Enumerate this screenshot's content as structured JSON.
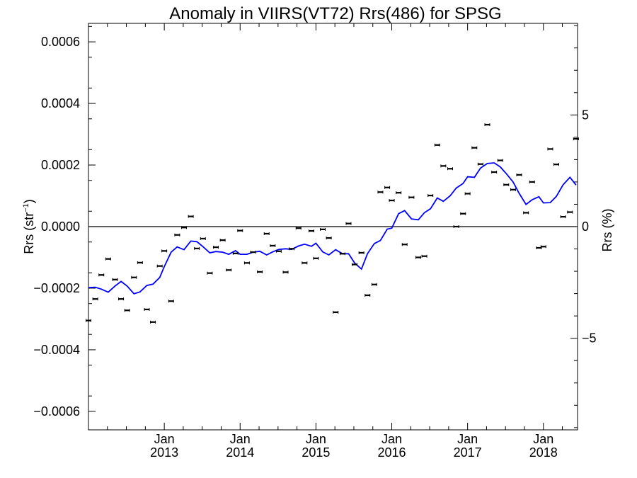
{
  "chart_data": {
    "type": "scatter",
    "title": "Anomaly in VIIRS(VT72) Rrs(486) for SPSG",
    "ylabel": "Rrs (str",
    "ylabel_sup": "−1",
    "ylabel_close": ")",
    "y2label": "Rrs (%)",
    "xlim": [
      2012.0,
      2018.45
    ],
    "ylim": [
      -0.00066,
      0.00066
    ],
    "y2lim": [
      -9.1,
      9.1
    ],
    "grid": false,
    "zero_line": true,
    "yticks": [
      {
        "value": 0.0006,
        "label": "0.0006"
      },
      {
        "value": 0.0004,
        "label": "0.0004"
      },
      {
        "value": 0.0002,
        "label": "0.0002"
      },
      {
        "value": 0.0,
        "label": "0.0000"
      },
      {
        "value": -0.0002,
        "label": "−0.0002"
      },
      {
        "value": -0.0004,
        "label": "−0.0004"
      },
      {
        "value": -0.0006,
        "label": "−0.0006"
      }
    ],
    "y2ticks": [
      {
        "value": 5,
        "label": "5"
      },
      {
        "value": 0,
        "label": "0"
      },
      {
        "value": -5,
        "label": "−5"
      }
    ],
    "xticks": [
      {
        "value": 2013.0,
        "line1": "Jan",
        "line2": "2013"
      },
      {
        "value": 2014.0,
        "line1": "Jan",
        "line2": "2014"
      },
      {
        "value": 2015.0,
        "line1": "Jan",
        "line2": "2015"
      },
      {
        "value": 2016.0,
        "line1": "Jan",
        "line2": "2016"
      },
      {
        "value": 2017.0,
        "line1": "Jan",
        "line2": "2017"
      },
      {
        "value": 2018.0,
        "line1": "Jan",
        "line2": "2018"
      }
    ],
    "points_color": "#000000",
    "line_color": "#0000ff",
    "points": [
      [
        2012.0,
        -0.000305
      ],
      [
        2012.09,
        -0.000235
      ],
      [
        2012.17,
        -0.000157
      ],
      [
        2012.26,
        -0.000105
      ],
      [
        2012.35,
        -0.000172
      ],
      [
        2012.43,
        -0.000235
      ],
      [
        2012.51,
        -0.000272
      ],
      [
        2012.6,
        -0.000165
      ],
      [
        2012.68,
        -0.000117
      ],
      [
        2012.77,
        -0.000269
      ],
      [
        2012.85,
        -0.00031
      ],
      [
        2012.94,
        -0.000128
      ],
      [
        2013.0,
        -7.9e-05
      ],
      [
        2013.09,
        -0.000242
      ],
      [
        2013.17,
        -2.7e-05
      ],
      [
        2013.26,
        -3e-06
      ],
      [
        2013.35,
        3.3e-05
      ],
      [
        2013.43,
        -7.1e-05
      ],
      [
        2013.51,
        -3.9e-05
      ],
      [
        2013.6,
        -0.000151
      ],
      [
        2013.68,
        -6.7e-05
      ],
      [
        2013.77,
        -4.4e-05
      ],
      [
        2013.85,
        -0.000141
      ],
      [
        2013.94,
        -8.7e-05
      ],
      [
        2014.0,
        -1.3e-05
      ],
      [
        2014.09,
        -0.000118
      ],
      [
        2014.17,
        -8.3e-05
      ],
      [
        2014.26,
        -0.000147
      ],
      [
        2014.35,
        -2.3e-05
      ],
      [
        2014.43,
        -6.2e-05
      ],
      [
        2014.51,
        -8e-05
      ],
      [
        2014.6,
        -0.000148
      ],
      [
        2014.68,
        -7.2e-05
      ],
      [
        2014.77,
        -5e-06
      ],
      [
        2014.85,
        -0.000118
      ],
      [
        2014.94,
        -1.4e-05
      ],
      [
        2015.0,
        -0.000103
      ],
      [
        2015.09,
        -9e-06
      ],
      [
        2015.17,
        -3.7e-05
      ],
      [
        2015.26,
        -0.000278
      ],
      [
        2015.35,
        -8.8e-05
      ],
      [
        2015.43,
        1e-05
      ],
      [
        2015.51,
        -0.000123
      ],
      [
        2015.6,
        -8.5e-05
      ],
      [
        2015.68,
        -0.000223
      ],
      [
        2015.77,
        -0.000188
      ],
      [
        2015.85,
        0.000112
      ],
      [
        2015.94,
        0.000127
      ],
      [
        2016.0,
        8.5e-05
      ],
      [
        2016.09,
        0.00011
      ],
      [
        2016.17,
        -5.8e-05
      ],
      [
        2016.26,
        9.5e-05
      ],
      [
        2016.35,
        -0.0001
      ],
      [
        2016.43,
        -9.6e-05
      ],
      [
        2016.51,
        0.000101
      ],
      [
        2016.6,
        0.000265
      ],
      [
        2016.68,
        0.000197
      ],
      [
        2016.77,
        0.000188
      ],
      [
        2016.85,
        0.0
      ],
      [
        2016.94,
        4.2e-05
      ],
      [
        2017.0,
        0.000107
      ],
      [
        2017.09,
        0.000256
      ],
      [
        2017.17,
        0.000203
      ],
      [
        2017.26,
        0.000331
      ],
      [
        2017.35,
        0.000177
      ],
      [
        2017.43,
        0.000215
      ],
      [
        2017.51,
        0.000136
      ],
      [
        2017.6,
        0.00012
      ],
      [
        2017.68,
        0.000168
      ],
      [
        2017.77,
        4.5e-05
      ],
      [
        2017.85,
        0.000145
      ],
      [
        2017.94,
        -6.9e-05
      ],
      [
        2018.0,
        -6.5e-05
      ],
      [
        2018.09,
        0.000252
      ],
      [
        2018.17,
        0.000202
      ],
      [
        2018.26,
        3.2e-05
      ],
      [
        2018.35,
        4.7e-05
      ],
      [
        2018.43,
        0.000285
      ]
    ],
    "line": [
      [
        2012.0,
        -0.000198
      ],
      [
        2012.09,
        -0.000197
      ],
      [
        2012.17,
        -0.000203
      ],
      [
        2012.26,
        -0.000213
      ],
      [
        2012.35,
        -0.000193
      ],
      [
        2012.43,
        -0.000178
      ],
      [
        2012.51,
        -0.000193
      ],
      [
        2012.6,
        -0.000218
      ],
      [
        2012.68,
        -0.000212
      ],
      [
        2012.77,
        -0.000191
      ],
      [
        2012.85,
        -0.000187
      ],
      [
        2012.94,
        -0.000165
      ],
      [
        2013.0,
        -0.00013
      ],
      [
        2013.09,
        -8.3e-05
      ],
      [
        2013.17,
        -6.6e-05
      ],
      [
        2013.26,
        -7.5e-05
      ],
      [
        2013.35,
        -4.7e-05
      ],
      [
        2013.43,
        -4.9e-05
      ],
      [
        2013.51,
        -6.5e-05
      ],
      [
        2013.6,
        -8.5e-05
      ],
      [
        2013.68,
        -8.1e-05
      ],
      [
        2013.77,
        -8.3e-05
      ],
      [
        2013.85,
        -9e-05
      ],
      [
        2013.94,
        -7.8e-05
      ],
      [
        2014.0,
        -9e-05
      ],
      [
        2014.09,
        -9e-05
      ],
      [
        2014.17,
        -8.3e-05
      ],
      [
        2014.26,
        -8e-05
      ],
      [
        2014.35,
        -9.2e-05
      ],
      [
        2014.43,
        -8.2e-05
      ],
      [
        2014.51,
        -7.4e-05
      ],
      [
        2014.6,
        -7.2e-05
      ],
      [
        2014.68,
        -7.4e-05
      ],
      [
        2014.77,
        -6.3e-05
      ],
      [
        2014.85,
        -5.7e-05
      ],
      [
        2014.94,
        -6.4e-05
      ],
      [
        2015.0,
        -5.4e-05
      ],
      [
        2015.09,
        -8.2e-05
      ],
      [
        2015.17,
        -9.2e-05
      ],
      [
        2015.26,
        -7.5e-05
      ],
      [
        2015.35,
        -8.8e-05
      ],
      [
        2015.43,
        -8.8e-05
      ],
      [
        2015.51,
        -0.000118
      ],
      [
        2015.6,
        -0.000138
      ],
      [
        2015.68,
        -8.8e-05
      ],
      [
        2015.77,
        -5.5e-05
      ],
      [
        2015.85,
        -4.5e-05
      ],
      [
        2015.94,
        -8e-06
      ],
      [
        2016.0,
        -5e-06
      ],
      [
        2016.09,
        4.2e-05
      ],
      [
        2016.17,
        5.2e-05
      ],
      [
        2016.26,
        2.5e-05
      ],
      [
        2016.35,
        2.2e-05
      ],
      [
        2016.43,
        4.5e-05
      ],
      [
        2016.51,
        5.8e-05
      ],
      [
        2016.6,
        9.3e-05
      ],
      [
        2016.68,
        8.2e-05
      ],
      [
        2016.77,
        0.0001
      ],
      [
        2016.85,
        0.000125
      ],
      [
        2016.94,
        0.00014
      ],
      [
        2017.0,
        0.000162
      ],
      [
        2017.09,
        0.00016
      ],
      [
        2017.17,
        0.00019
      ],
      [
        2017.26,
        0.000205
      ],
      [
        2017.35,
        0.000207
      ],
      [
        2017.43,
        0.000194
      ],
      [
        2017.51,
        0.000172
      ],
      [
        2017.6,
        0.000145
      ],
      [
        2017.68,
        0.000108
      ],
      [
        2017.77,
        7.2e-05
      ],
      [
        2017.85,
        8.7e-05
      ],
      [
        2017.94,
        9.7e-05
      ],
      [
        2018.0,
        7.7e-05
      ],
      [
        2018.09,
        7.8e-05
      ],
      [
        2018.17,
        9.8e-05
      ],
      [
        2018.26,
        0.000136
      ],
      [
        2018.35,
        0.00016
      ],
      [
        2018.43,
        0.000135
      ]
    ]
  }
}
